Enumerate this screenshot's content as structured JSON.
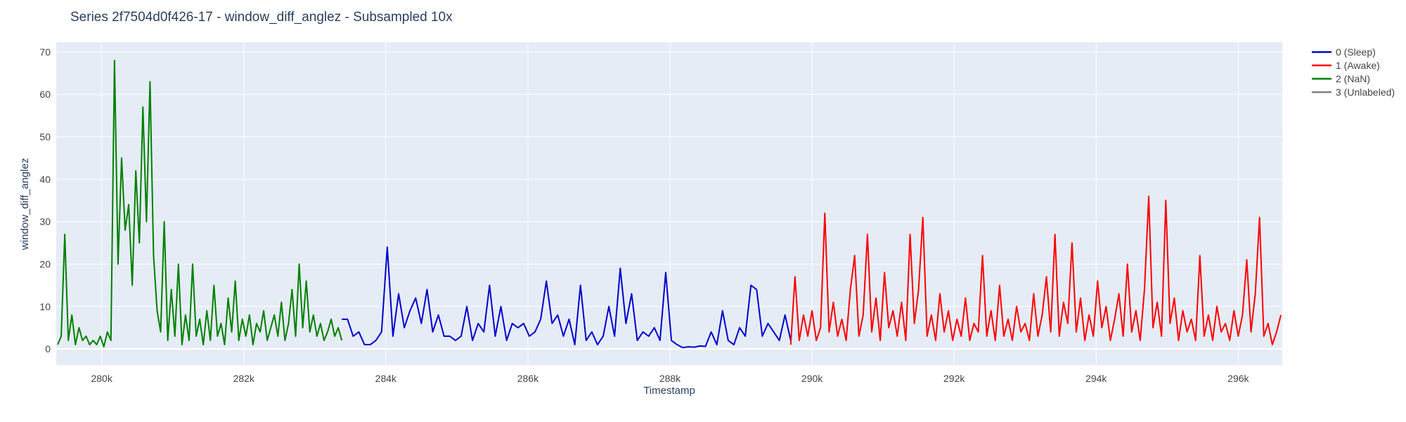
{
  "chart_data": {
    "type": "line",
    "title": "Series 2f7504d0f426-17 - window_diff_anglez - Subsampled 10x",
    "x_label": "Timestamp",
    "y_label": "window_diff_anglez",
    "xlim": [
      279360,
      296620
    ],
    "ylim": [
      -3.8,
      72.3
    ],
    "xticks": [
      {
        "value": 280000,
        "label": "280k"
      },
      {
        "value": 282000,
        "label": "282k"
      },
      {
        "value": 284000,
        "label": "284k"
      },
      {
        "value": 286000,
        "label": "286k"
      },
      {
        "value": 288000,
        "label": "288k"
      },
      {
        "value": 290000,
        "label": "290k"
      },
      {
        "value": 292000,
        "label": "292k"
      },
      {
        "value": 294000,
        "label": "294k"
      },
      {
        "value": 296000,
        "label": "296k"
      }
    ],
    "yticks": [
      0,
      10,
      20,
      30,
      40,
      50,
      60,
      70
    ],
    "grid": true,
    "series": [
      {
        "name": "0 (Sleep)",
        "color": "#0000cd",
        "x": [
          283380,
          283460,
          283540,
          283620,
          283700,
          283780,
          283860,
          283940,
          284020,
          284100,
          284180,
          284260,
          284340,
          284420,
          284500,
          284580,
          284660,
          284740,
          284820,
          284900,
          284980,
          285060,
          285140,
          285220,
          285300,
          285380,
          285460,
          285540,
          285620,
          285700,
          285780,
          285860,
          285940,
          286020,
          286100,
          286180,
          286260,
          286340,
          286420,
          286500,
          286580,
          286660,
          286740,
          286820,
          286900,
          286980,
          287060,
          287140,
          287220,
          287300,
          287380,
          287460,
          287540,
          287620,
          287700,
          287780,
          287860,
          287940,
          288020,
          288100,
          288180,
          288260,
          288340,
          288420,
          288500,
          288580,
          288660,
          288740,
          288820,
          288900,
          288980,
          289060,
          289140,
          289220,
          289300,
          289380,
          289460,
          289540,
          289620,
          289700
        ],
        "values": [
          7,
          7,
          3,
          4,
          1,
          1,
          2,
          4,
          24,
          3,
          13,
          5,
          9,
          12,
          6,
          14,
          4,
          8,
          3,
          3,
          2,
          3,
          10,
          2,
          6,
          4,
          15,
          3,
          10,
          2,
          6,
          5,
          6,
          3,
          4,
          7,
          16,
          6,
          8,
          3,
          7,
          1,
          15,
          2,
          4,
          1,
          3,
          10,
          3,
          19,
          6,
          13,
          2,
          4,
          3,
          5,
          2,
          18,
          2,
          1,
          0.3,
          0.5,
          0.4,
          0.7,
          0.6,
          4,
          1,
          9,
          2,
          1,
          5,
          3,
          15,
          14,
          3,
          6,
          4,
          2,
          8,
          2
        ]
      },
      {
        "name": "1 (Awake)",
        "color": "#ff0000",
        "x": [
          289700,
          289760,
          289820,
          289880,
          289940,
          290000,
          290060,
          290120,
          290180,
          290240,
          290300,
          290360,
          290420,
          290480,
          290540,
          290600,
          290660,
          290720,
          290780,
          290840,
          290900,
          290960,
          291020,
          291080,
          291140,
          291200,
          291260,
          291320,
          291380,
          291440,
          291500,
          291560,
          291620,
          291680,
          291740,
          291800,
          291860,
          291920,
          291980,
          292040,
          292100,
          292160,
          292220,
          292280,
          292340,
          292400,
          292460,
          292520,
          292580,
          292640,
          292700,
          292760,
          292820,
          292880,
          292940,
          293000,
          293060,
          293120,
          293180,
          293240,
          293300,
          293360,
          293420,
          293480,
          293540,
          293600,
          293660,
          293720,
          293780,
          293840,
          293900,
          293960,
          294020,
          294080,
          294140,
          294200,
          294260,
          294320,
          294380,
          294440,
          294500,
          294560,
          294620,
          294680,
          294740,
          294800,
          294860,
          294920,
          294980,
          295040,
          295100,
          295160,
          295220,
          295280,
          295340,
          295400,
          295460,
          295520,
          295580,
          295640,
          295700,
          295760,
          295820,
          295880,
          295940,
          296000,
          296060,
          296120,
          296180,
          296240,
          296300,
          296360,
          296420,
          296480,
          296540,
          296600
        ],
        "values": [
          1,
          17,
          2,
          8,
          3,
          9,
          2,
          5,
          32,
          4,
          11,
          3,
          7,
          2,
          14,
          22,
          3,
          8,
          27,
          4,
          12,
          2,
          18,
          5,
          9,
          3,
          11,
          2,
          27,
          6,
          14,
          31,
          3,
          8,
          2,
          13,
          4,
          9,
          2,
          7,
          3,
          12,
          2,
          6,
          4,
          22,
          3,
          9,
          2,
          15,
          3,
          7,
          2,
          10,
          4,
          6,
          2,
          13,
          3,
          8,
          17,
          4,
          27,
          3,
          11,
          6,
          25,
          4,
          12,
          2,
          8,
          3,
          16,
          5,
          10,
          2,
          7,
          13,
          3,
          20,
          4,
          9,
          2,
          14,
          36,
          5,
          11,
          3,
          35,
          6,
          12,
          2,
          9,
          4,
          7,
          2,
          22,
          3,
          8,
          2,
          10,
          4,
          6,
          2,
          9,
          3,
          8,
          21,
          4,
          13,
          31,
          3,
          6,
          1,
          4,
          8
        ]
      },
      {
        "name": "2 (NaN)",
        "color": "#008000",
        "x": [
          279380,
          279430,
          279480,
          279530,
          279580,
          279630,
          279680,
          279730,
          279780,
          279830,
          279880,
          279930,
          279980,
          280030,
          280080,
          280130,
          280180,
          280230,
          280280,
          280330,
          280380,
          280430,
          280480,
          280530,
          280580,
          280630,
          280680,
          280730,
          280780,
          280830,
          280880,
          280930,
          280980,
          281030,
          281080,
          281130,
          281180,
          281230,
          281280,
          281330,
          281380,
          281430,
          281480,
          281530,
          281580,
          281630,
          281680,
          281730,
          281780,
          281830,
          281880,
          281930,
          281980,
          282030,
          282080,
          282130,
          282180,
          282230,
          282280,
          282330,
          282380,
          282430,
          282480,
          282530,
          282580,
          282630,
          282680,
          282730,
          282780,
          282830,
          282880,
          282930,
          282980,
          283030,
          283080,
          283130,
          283180,
          283230,
          283280,
          283330,
          283380
        ],
        "values": [
          1,
          3,
          27,
          2,
          8,
          1,
          5,
          2,
          3,
          1,
          2,
          1,
          3,
          0.5,
          4,
          2,
          68,
          20,
          45,
          28,
          34,
          15,
          42,
          25,
          57,
          30,
          63,
          22,
          9,
          4,
          30,
          2,
          14,
          3,
          20,
          1,
          8,
          2,
          20,
          3,
          7,
          1,
          9,
          2,
          15,
          3,
          6,
          1,
          12,
          4,
          16,
          2,
          7,
          3,
          8,
          1,
          6,
          4,
          9,
          2,
          5,
          8,
          3,
          11,
          2,
          6,
          14,
          3,
          20,
          5,
          16,
          4,
          8,
          3,
          6,
          2,
          4,
          7,
          3,
          5,
          2
        ]
      },
      {
        "name": "3 (Unlabeled)",
        "color": "#808080",
        "x": [],
        "values": []
      }
    ]
  }
}
